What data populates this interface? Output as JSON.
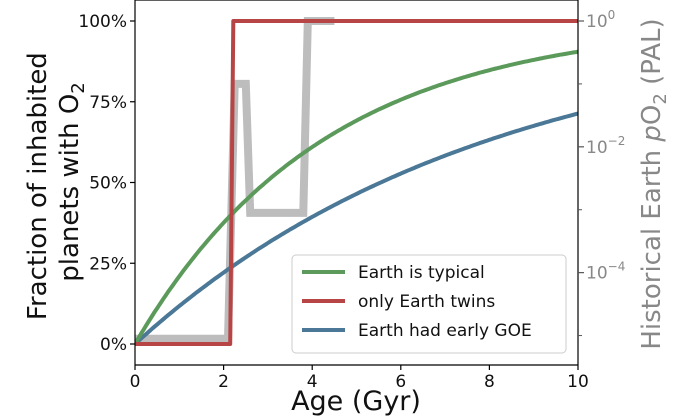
{
  "chart_data": {
    "type": "line",
    "xlabel": "Age (Gyr)",
    "ylabel_line1": "Fraction of inhabited",
    "ylabel_line2_prefix": "planets with O",
    "ylabel_line2_sub": "2",
    "y2label_prefix": "Historical Earth ",
    "y2label_p": "p",
    "y2label_o": "O",
    "y2label_sub": "2",
    "y2label_suffix": " (PAL)",
    "xlim": [
      0,
      10
    ],
    "ylim": [
      0,
      100
    ],
    "y2lim_log10": [
      -5.5,
      0
    ],
    "x_ticks": [
      0,
      2,
      4,
      6,
      8,
      10
    ],
    "x_tick_labels": [
      "0",
      "2",
      "4",
      "6",
      "8",
      "10"
    ],
    "y_ticks": [
      0,
      25,
      50,
      75,
      100
    ],
    "y_tick_labels": [
      "0%",
      "25%",
      "50%",
      "75%",
      "100%"
    ],
    "y2_major_ticks_log10": [
      0,
      -2,
      -4
    ],
    "y2_tick_labels": [
      {
        "base": "10",
        "exp": "0"
      },
      {
        "base": "10",
        "exp": "−2"
      },
      {
        "base": "10",
        "exp": "−4"
      }
    ],
    "y2_minor_ticks_log10": [
      -1,
      -3,
      -5
    ],
    "grid": false,
    "legend_placement": "lower-right",
    "series": [
      {
        "name": "Earth is typical",
        "color": "#5b9a5b",
        "function": "1-exp(-x/4.25)"
      },
      {
        "name": "only Earth twins",
        "color": "#b84545",
        "x": [
          0,
          2.15,
          2.22,
          10
        ],
        "y": [
          0,
          0,
          100,
          100
        ]
      },
      {
        "name": "Earth had early GOE",
        "color": "#4a7896",
        "function": "1-exp(-x/8)"
      }
    ],
    "background_series": {
      "axis": "right",
      "color": "#bdbdbd",
      "x": [
        0,
        2.1,
        2.25,
        2.5,
        2.6,
        3.8,
        3.9,
        4.5
      ],
      "y_log10": [
        -5.05,
        -5.05,
        -1.0,
        -1.0,
        -3.05,
        -3.05,
        0,
        0
      ]
    }
  }
}
